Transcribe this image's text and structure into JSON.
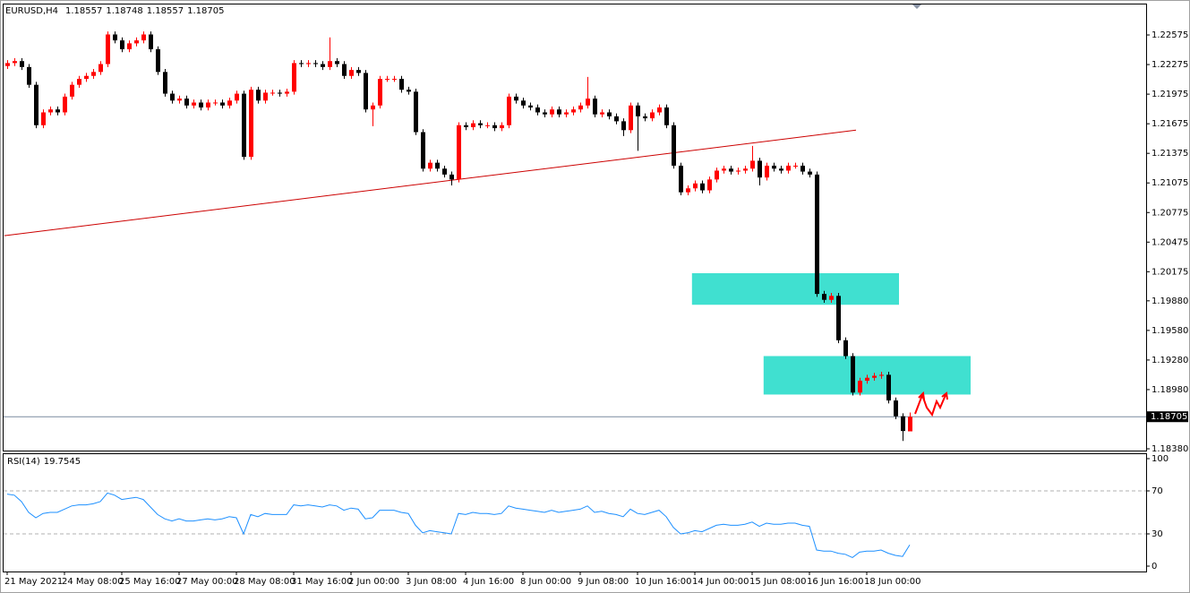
{
  "chart_data": [
    {
      "type": "candlestick",
      "title": "EURUSD,H4",
      "categories": [
        "21 May 2021",
        null,
        null,
        null,
        null,
        null,
        null,
        null,
        "24 May 08:00",
        null,
        null,
        null,
        null,
        null,
        null,
        null,
        "25 May 16:00",
        null,
        null,
        null,
        null,
        null,
        null,
        null,
        "27 May 00:00",
        null,
        null,
        null,
        null,
        null,
        null,
        null,
        "28 May 08:00",
        null,
        null,
        null,
        null,
        null,
        null,
        null,
        "31 May 16:00",
        null,
        null,
        null,
        null,
        null,
        null,
        null,
        "2 Jun 00:00",
        null,
        null,
        null,
        null,
        null,
        null,
        null,
        "3 Jun 08:00",
        null,
        null,
        null,
        null,
        null,
        null,
        null,
        "4 Jun 16:00",
        null,
        null,
        null,
        null,
        null,
        null,
        null,
        "8 Jun 00:00",
        null,
        null,
        null,
        null,
        null,
        null,
        null,
        "9 Jun 08:00",
        null,
        null,
        null,
        null,
        null,
        null,
        null,
        "10 Jun 16:00",
        null,
        null,
        null,
        null,
        null,
        null,
        null,
        "14 Jun 00:00",
        null,
        null,
        null,
        null,
        null,
        null,
        null,
        "15 Jun 08:00",
        null,
        null,
        null,
        null,
        null,
        null,
        null,
        "16 Jun 16:00",
        null,
        null,
        null,
        null,
        null,
        null,
        null,
        "18 Jun 00:00",
        null,
        null,
        null,
        null,
        null,
        null
      ],
      "open": [
        1.2226,
        1.2229,
        1.2231,
        1.2225,
        1.2207,
        1.2166,
        1.2179,
        1.2182,
        1.2179,
        1.2195,
        1.2207,
        1.2213,
        1.2216,
        1.222,
        1.2228,
        1.2258,
        1.2252,
        1.2243,
        1.2249,
        1.2252,
        1.2258,
        1.2243,
        1.222,
        1.2198,
        1.2191,
        1.2193,
        1.2186,
        1.2189,
        1.2184,
        1.2189,
        1.2189,
        1.2186,
        1.2191,
        1.2198,
        1.2134,
        1.2202,
        1.2191,
        1.2199,
        1.2199,
        1.2198,
        1.22,
        1.2229,
        1.2228,
        1.2229,
        1.2228,
        1.2225,
        1.2231,
        1.2228,
        1.2216,
        1.2222,
        1.2219,
        1.2182,
        1.2186,
        1.2213,
        1.2213,
        1.2213,
        1.2202,
        1.22,
        1.2159,
        1.2122,
        1.2128,
        1.2122,
        1.2116,
        1.2111,
        1.2166,
        1.2164,
        1.2168,
        1.2166,
        1.2166,
        1.2163,
        1.2166,
        1.2195,
        1.2191,
        1.2186,
        1.2184,
        1.2179,
        1.2177,
        1.2182,
        1.2177,
        1.2179,
        1.2182,
        1.2186,
        1.2193,
        1.2177,
        1.2179,
        1.2175,
        1.217,
        1.2161,
        1.2186,
        1.2175,
        1.2173,
        1.2179,
        1.2184,
        1.2166,
        1.2125,
        1.2098,
        1.2102,
        1.2107,
        1.21,
        1.2111,
        1.212,
        1.2122,
        1.2119,
        1.212,
        1.2122,
        1.213,
        1.2113,
        1.2125,
        1.2122,
        1.212,
        1.2125,
        1.2125,
        1.2119,
        1.2116,
        1.1995,
        1.1989,
        1.1993,
        1.1948,
        1.1932,
        1.1895,
        1.1907,
        1.191,
        1.1912,
        1.1913,
        1.1887,
        1.1871,
        1.18557
      ],
      "high": [
        1.2232,
        1.2234,
        1.2234,
        1.2228,
        1.221,
        1.2182,
        1.2185,
        1.2185,
        1.2198,
        1.221,
        1.2216,
        1.2219,
        1.2223,
        1.2231,
        1.2261,
        1.2261,
        1.2255,
        1.2252,
        1.2255,
        1.2261,
        1.2261,
        1.2246,
        1.2223,
        1.2201,
        1.2196,
        1.2196,
        1.2192,
        1.2192,
        1.2192,
        1.2192,
        1.2192,
        1.2194,
        1.2201,
        1.2201,
        1.2205,
        1.2205,
        1.2202,
        1.2202,
        1.2202,
        1.2203,
        1.2232,
        1.2232,
        1.2232,
        1.2232,
        1.2231,
        1.2255,
        1.2234,
        1.2231,
        1.2225,
        1.2225,
        1.2222,
        1.2189,
        1.2216,
        1.2216,
        1.2216,
        1.2216,
        1.2205,
        1.2203,
        1.2162,
        1.2131,
        1.2131,
        1.2125,
        1.2119,
        1.2169,
        1.2169,
        1.2171,
        1.2171,
        1.2169,
        1.2169,
        1.2169,
        1.2198,
        1.2198,
        1.2194,
        1.2189,
        1.2187,
        1.2182,
        1.2185,
        1.2185,
        1.2182,
        1.2185,
        1.2189,
        1.2215,
        1.2196,
        1.2182,
        1.2182,
        1.2178,
        1.2173,
        1.2189,
        1.2189,
        1.2178,
        1.2182,
        1.2187,
        1.2187,
        1.2169,
        1.2128,
        1.2105,
        1.211,
        1.211,
        1.2114,
        1.2123,
        1.2125,
        1.2125,
        1.2123,
        1.2125,
        1.2145,
        1.2133,
        1.2128,
        1.2128,
        1.2125,
        1.2128,
        1.2128,
        1.2128,
        1.2122,
        1.2119,
        1.1998,
        1.1996,
        1.1996,
        1.1951,
        1.1935,
        1.191,
        1.1913,
        1.1915,
        1.1916,
        1.1916,
        1.189,
        1.1874,
        1.18748
      ],
      "low": [
        1.2223,
        1.2226,
        1.2222,
        1.2204,
        1.2163,
        1.2163,
        1.2176,
        1.2176,
        1.2176,
        1.2192,
        1.2204,
        1.221,
        1.2213,
        1.2217,
        1.2225,
        1.2249,
        1.224,
        1.224,
        1.2246,
        1.2249,
        1.224,
        1.2217,
        1.2195,
        1.2188,
        1.2188,
        1.2183,
        1.2183,
        1.2181,
        1.2181,
        1.2186,
        1.2183,
        1.2183,
        1.2188,
        1.2131,
        1.2131,
        1.2188,
        1.2188,
        1.2196,
        1.2195,
        1.2195,
        1.2197,
        1.2225,
        1.2225,
        1.2225,
        1.2222,
        1.2222,
        1.2225,
        1.2213,
        1.2213,
        1.2216,
        1.2179,
        1.2165,
        1.2183,
        1.221,
        1.221,
        1.2199,
        1.2197,
        1.2156,
        1.2119,
        1.2119,
        1.2119,
        1.2113,
        1.2105,
        1.2108,
        1.2161,
        1.2161,
        1.2163,
        1.2163,
        1.216,
        1.216,
        1.2163,
        1.2188,
        1.2183,
        1.2181,
        1.2176,
        1.2174,
        1.2174,
        1.2174,
        1.2174,
        1.2176,
        1.2179,
        1.2183,
        1.2174,
        1.2174,
        1.2172,
        1.2167,
        1.2155,
        1.2158,
        1.214,
        1.217,
        1.217,
        1.2176,
        1.2163,
        1.2122,
        1.2095,
        1.2095,
        1.2099,
        1.2097,
        1.2097,
        1.2108,
        1.2117,
        1.2116,
        1.2116,
        1.2117,
        1.2119,
        1.2105,
        1.211,
        1.2119,
        1.2117,
        1.2117,
        1.2122,
        1.2116,
        1.2113,
        1.1992,
        1.1986,
        1.1986,
        1.1945,
        1.1929,
        1.1892,
        1.1892,
        1.1904,
        1.1907,
        1.1909,
        1.1884,
        1.1868,
        1.1846,
        1.18557
      ],
      "close": [
        1.2229,
        1.2231,
        1.2225,
        1.2207,
        1.2166,
        1.2179,
        1.2182,
        1.2179,
        1.2195,
        1.2207,
        1.2213,
        1.2216,
        1.222,
        1.2228,
        1.2258,
        1.2252,
        1.2243,
        1.2249,
        1.2252,
        1.2258,
        1.2243,
        1.222,
        1.2198,
        1.2191,
        1.2193,
        1.2186,
        1.2189,
        1.2184,
        1.2189,
        1.2189,
        1.2186,
        1.2191,
        1.2198,
        1.2134,
        1.2202,
        1.2191,
        1.2199,
        1.2199,
        1.2198,
        1.22,
        1.2229,
        1.2228,
        1.2229,
        1.2228,
        1.2225,
        1.2231,
        1.2228,
        1.2216,
        1.2222,
        1.2219,
        1.2182,
        1.2186,
        1.2213,
        1.2213,
        1.2213,
        1.2202,
        1.22,
        1.2159,
        1.2122,
        1.2128,
        1.2122,
        1.2116,
        1.2111,
        1.2166,
        1.2164,
        1.2168,
        1.2166,
        1.2166,
        1.2163,
        1.2166,
        1.2195,
        1.2191,
        1.2186,
        1.2184,
        1.2179,
        1.2177,
        1.2182,
        1.2177,
        1.2179,
        1.2182,
        1.2186,
        1.2193,
        1.2177,
        1.2179,
        1.2175,
        1.217,
        1.2161,
        1.2186,
        1.2175,
        1.2173,
        1.2179,
        1.2184,
        1.2166,
        1.2125,
        1.2098,
        1.2102,
        1.2107,
        1.21,
        1.2111,
        1.212,
        1.2122,
        1.2119,
        1.212,
        1.2122,
        1.213,
        1.2113,
        1.2125,
        1.2122,
        1.212,
        1.2125,
        1.2125,
        1.2119,
        1.2116,
        1.1995,
        1.1989,
        1.1993,
        1.1948,
        1.1932,
        1.1895,
        1.1907,
        1.191,
        1.1912,
        1.1913,
        1.1887,
        1.1871,
        1.1856,
        1.18705
      ],
      "up_color": "#ff0000",
      "down_color": "#000000",
      "ylim": [
        1.18362,
        1.22884
      ],
      "yticks": [
        1.22575,
        1.22275,
        1.21975,
        1.21675,
        1.21375,
        1.21075,
        1.20775,
        1.20475,
        1.20175,
        {
          "value": 1.1988,
          "label": "1.19880"
        },
        {
          "value": 1.1958,
          "label": "1.19580"
        },
        {
          "value": 1.1928,
          "label": "1.19280"
        },
        {
          "value": 1.1898,
          "label": "1.18980"
        },
        {
          "value": 1.1838,
          "label": "1.18380"
        }
      ],
      "trendline": {
        "x": [
          -0.4,
          118.5
        ],
        "y": [
          1.2054,
          1.2161
        ],
        "color": "#cc0000"
      },
      "zones": [
        {
          "x": [
            95.6,
            124.5
          ],
          "y": [
            1.1984,
            1.2016
          ],
          "color": "#40e0d0"
        },
        {
          "x": [
            105.6,
            134.5
          ],
          "y": [
            1.1893,
            1.1932
          ],
          "color": "#40e0d0"
        }
      ],
      "price_line_color": "#7a8aa0"
    },
    {
      "type": "line",
      "name": "RSI(14)",
      "color": "#1e90ff",
      "values": [
        67,
        66,
        60,
        50,
        45,
        49,
        50,
        50,
        53,
        56,
        57,
        57,
        58,
        60,
        68,
        66,
        62,
        63,
        64,
        62,
        55,
        48,
        44,
        42,
        44,
        42,
        42,
        43,
        44,
        43,
        44,
        46,
        45,
        30,
        48,
        46,
        49,
        48,
        48,
        48,
        57,
        56,
        57,
        56,
        55,
        57,
        56,
        52,
        54,
        53,
        44,
        45,
        52,
        52,
        52,
        50,
        49,
        38,
        31,
        33,
        32,
        31,
        30,
        49,
        48,
        50,
        49,
        49,
        48,
        49,
        56,
        54,
        53,
        52,
        51,
        50,
        52,
        50,
        51,
        52,
        53,
        56,
        50,
        51,
        49,
        48,
        46,
        53,
        49,
        48,
        50,
        52,
        46,
        36,
        30,
        31,
        33,
        32,
        35,
        38,
        39,
        38,
        38,
        39,
        41,
        37,
        40,
        39,
        39,
        40,
        40,
        38,
        37,
        15,
        14,
        14,
        12,
        11,
        8,
        13,
        14,
        14,
        15,
        12,
        10,
        9,
        19.7545
      ],
      "ylim": [
        -5,
        105
      ],
      "yticks": [
        100,
        70,
        30,
        0
      ],
      "levels": [
        70,
        30
      ]
    }
  ]
}
